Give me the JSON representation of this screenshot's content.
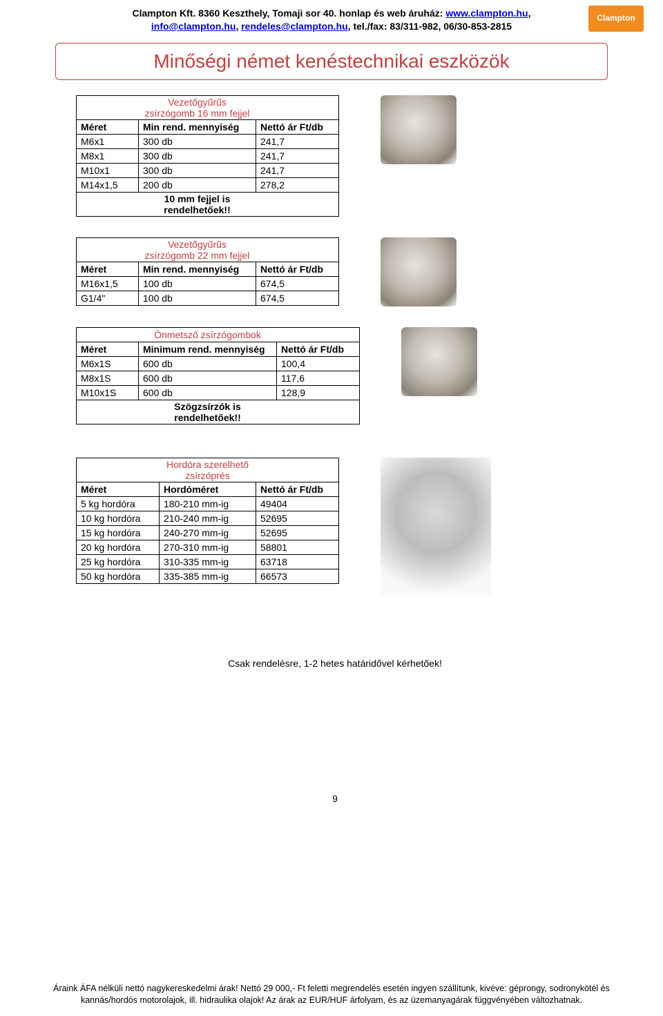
{
  "header": {
    "line1_a": "Clampton Kft. 8360 Keszthely, Tomaji sor 40.",
    "line1_b": " honlap és web áruház: ",
    "link1": "www.clampton.hu",
    "line2_a": "",
    "link2": "info@clampton.hu",
    "sep": ", ",
    "link3": "rendeles@clampton.hu",
    "line2_b": ", tel./fax: 83/311-982, 06/30-853-2815",
    "logo_text": "Clampton"
  },
  "title": "Minőségi német kenéstechnikai eszközök",
  "table1": {
    "title": "Vezetőgyűrűs zsírzógomb 16 mm fejjel",
    "columns": [
      "Méret",
      "Min rend. mennyiség",
      "Nettó ár Ft/db"
    ],
    "rows": [
      [
        "M6x1",
        "300 db",
        "241,7"
      ],
      [
        "M8x1",
        "300 db",
        "241,7"
      ],
      [
        "M10x1",
        "300 db",
        "241,7"
      ],
      [
        "M14x1,5",
        "200 db",
        "278,2"
      ]
    ],
    "footer": "10 mm fejjel is rendelhetőek!!",
    "widths": [
      90,
      170,
      120
    ]
  },
  "table2": {
    "title": "Vezetőgyűrűs zsírzógomb 22 mm fejjel",
    "columns": [
      "Méret",
      "Min rend. mennyiség",
      "Nettó ár Ft/db"
    ],
    "rows": [
      [
        "M16x1,5",
        "100 db",
        "674,5"
      ],
      [
        "G1/4\"",
        "100 db",
        "674,5"
      ]
    ],
    "widths": [
      90,
      170,
      120
    ]
  },
  "table3": {
    "title": "Önmetsző zsírzógombok",
    "columns": [
      "Méret",
      "Minimum rend. mennyiség",
      "Nettó ár Ft/db"
    ],
    "rows": [
      [
        "M6x1S",
        "600 db",
        "100,4"
      ],
      [
        "M8x1S",
        "600 db",
        "117,6"
      ],
      [
        "M10x1S",
        "600 db",
        "128,9"
      ]
    ],
    "footer": "Szögzsírzók is rendelhetőek!!",
    "widths": [
      90,
      200,
      120
    ]
  },
  "table4": {
    "title": "Hordóra szerelhető zsírzóprés",
    "columns": [
      "Méret",
      "Hordóméret",
      "Nettó ár Ft/db"
    ],
    "rows": [
      [
        "5 kg hordóra",
        "180-210 mm-ig",
        "49404"
      ],
      [
        "10 kg hordóra",
        "210-240 mm-ig",
        "52695"
      ],
      [
        "15 kg hordóra",
        "240-270 mm-ig",
        "52695"
      ],
      [
        "20 kg hordóra",
        "270-310 mm-ig",
        "58801"
      ],
      [
        "25 kg hordóra",
        "310-335 mm-ig",
        "63718"
      ],
      [
        "50 kg hordóra",
        "335-385 mm-ig",
        "66573"
      ]
    ],
    "widths": [
      120,
      140,
      120
    ]
  },
  "note": "Csak rendelésre, 1-2 hetes határidővel kérhetőek!",
  "page_number": "9",
  "footer": "Áraink ÁFA nélküli nettó nagykereskedelmi árak! Nettó 29 000,- Ft feletti megrendelés esetén ingyen szállítunk, kivéve: géprongy, sodronykötél és kannás/hordós motorolajok, ill. hidraulika olajok! Az árak az EUR/HUF árfolyam, és az üzemanyagárak függvényében változhatnak."
}
